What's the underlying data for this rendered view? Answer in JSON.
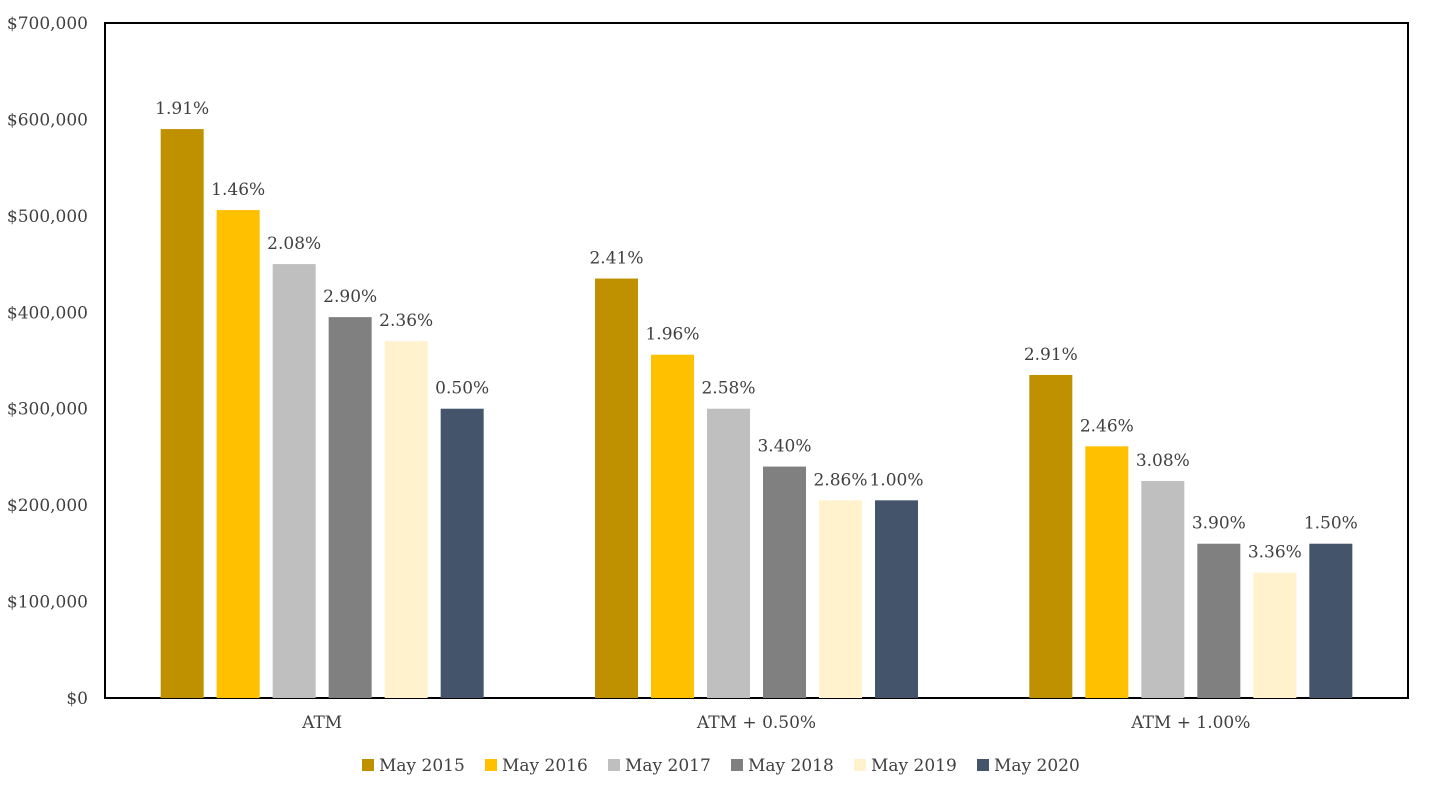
{
  "chart_data": {
    "type": "bar",
    "title": "",
    "xlabel": "",
    "ylabel": "",
    "categories": [
      "ATM",
      "ATM + 0.50%",
      "ATM + 1.00%"
    ],
    "ylim": [
      0,
      700000
    ],
    "yticks": [
      0,
      100000,
      200000,
      300000,
      400000,
      500000,
      600000,
      700000
    ],
    "ytick_labels": [
      "$0",
      "$100,000",
      "$200,000",
      "$300,000",
      "$400,000",
      "$500,000",
      "$600,000",
      "$700,000"
    ],
    "grid": false,
    "legend_position": "bottom",
    "series": [
      {
        "name": "May 2015",
        "color": "#BF9000",
        "values": [
          590000,
          435000,
          335000
        ],
        "labels": [
          "1.91%",
          "2.41%",
          "2.91%"
        ]
      },
      {
        "name": "May 2016",
        "color": "#FFC000",
        "values": [
          506000,
          356000,
          261000
        ],
        "labels": [
          "1.46%",
          "1.96%",
          "2.46%"
        ]
      },
      {
        "name": "May 2017",
        "color": "#BFBFBF",
        "values": [
          450000,
          300000,
          225000
        ],
        "labels": [
          "2.08%",
          "2.58%",
          "3.08%"
        ]
      },
      {
        "name": "May 2018",
        "color": "#808080",
        "values": [
          395000,
          240000,
          160000
        ],
        "labels": [
          "2.90%",
          "3.40%",
          "3.90%"
        ]
      },
      {
        "name": "May 2019",
        "color": "#FFF2CC",
        "values": [
          370000,
          205000,
          130000
        ],
        "labels": [
          "2.36%",
          "2.86%",
          "3.36%"
        ]
      },
      {
        "name": "May 2020",
        "color": "#44546A",
        "values": [
          300000,
          205000,
          160000
        ],
        "labels": [
          "0.50%",
          "1.00%",
          "1.50%"
        ]
      }
    ]
  }
}
